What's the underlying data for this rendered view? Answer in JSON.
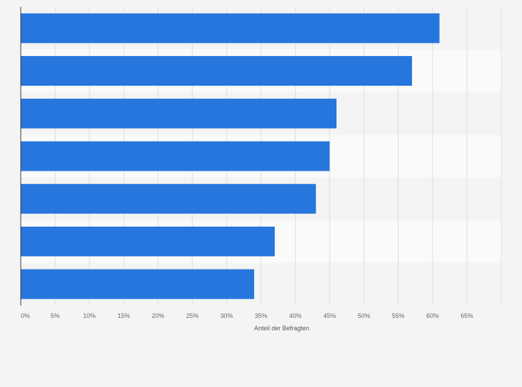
{
  "chart_data": {
    "type": "bar",
    "orientation": "horizontal",
    "categories": [
      "",
      "",
      "",
      "",
      "",
      "",
      ""
    ],
    "values": [
      61,
      57,
      46,
      45,
      43,
      37,
      34
    ],
    "xlim": [
      0,
      70
    ],
    "x_ticks": [
      "0%",
      "5%",
      "10%",
      "15%",
      "20%",
      "25%",
      "30%",
      "35%",
      "40%",
      "45%",
      "50%",
      "55%",
      "60%",
      "65%"
    ],
    "xlabel": "Anteil der Befragten",
    "ylabel": "",
    "title": "",
    "grid": true,
    "colors": {
      "bar": "#2776dd",
      "band_light": "#fafafa",
      "band_dark": "#f4f4f4",
      "grid": "#dddddd",
      "axis": "#333333"
    }
  }
}
